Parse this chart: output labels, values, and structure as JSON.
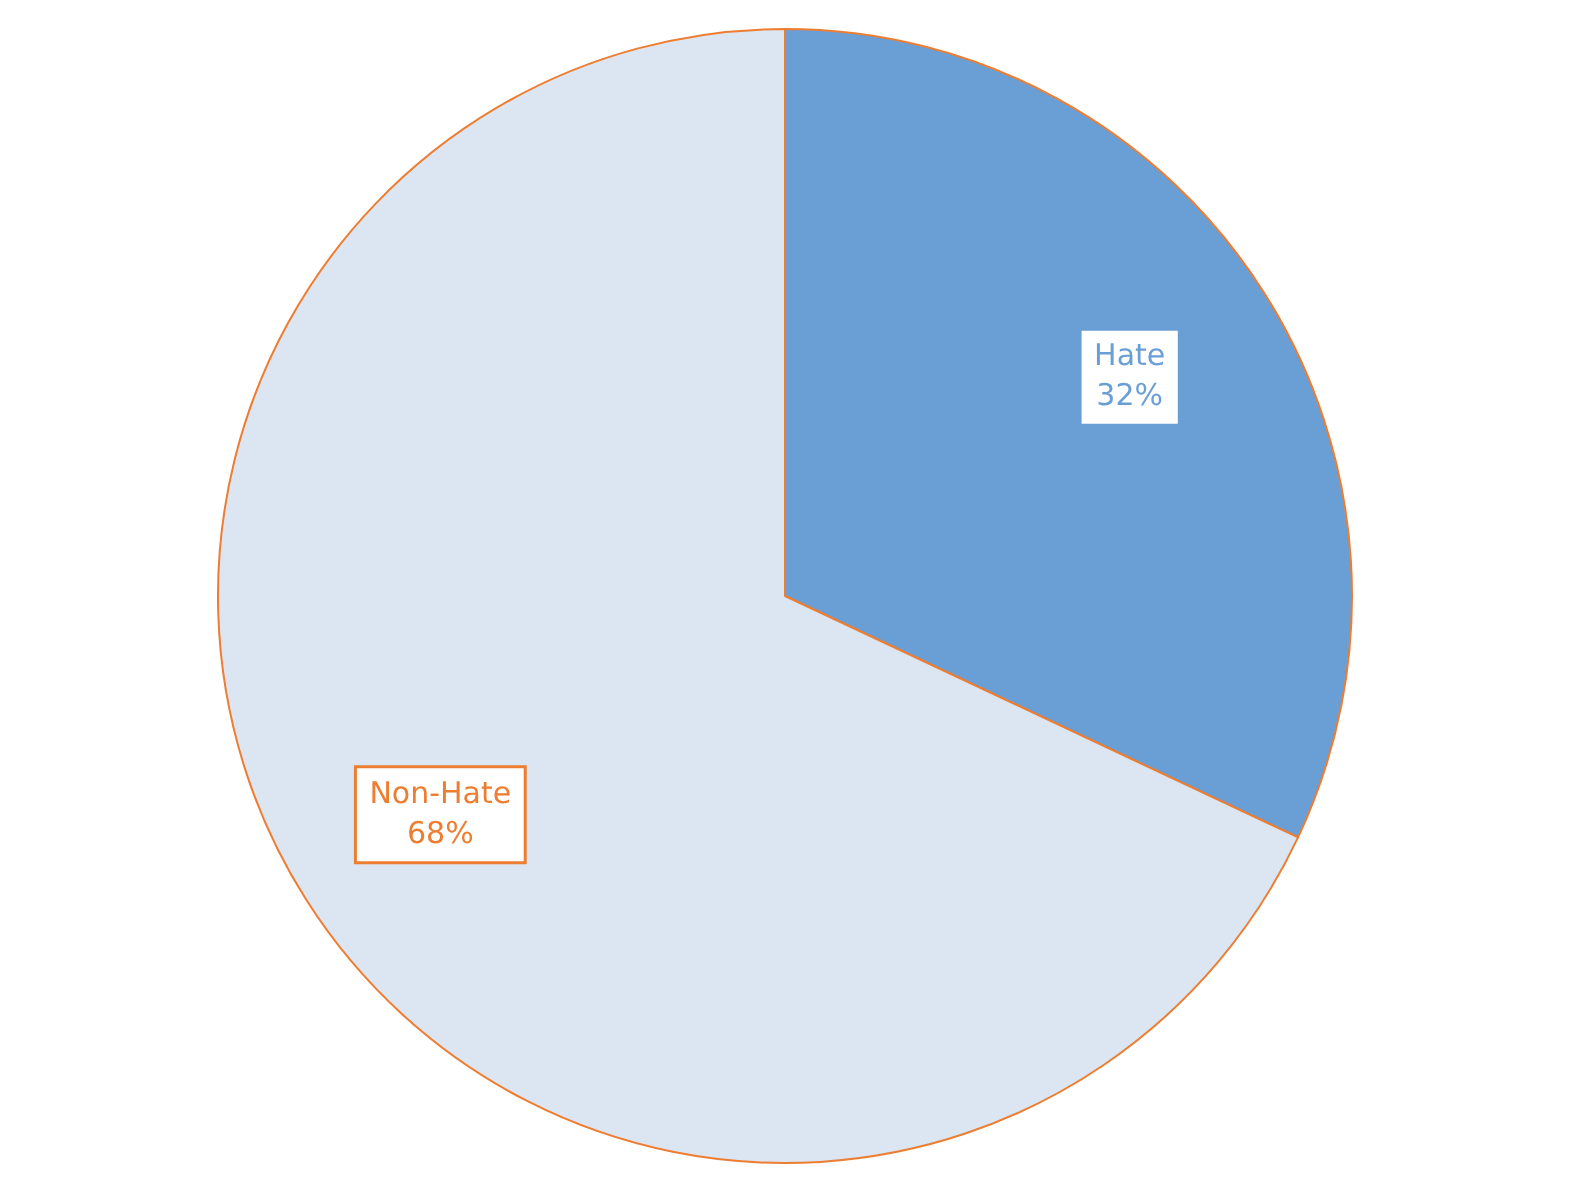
{
  "chart_data": {
    "type": "pie",
    "categories": [
      "Hate",
      "Non-Hate"
    ],
    "values": [
      32,
      68
    ],
    "colors": [
      "#6a9fd6",
      "#dce6f2"
    ],
    "value_labels": [
      "32%",
      "68%"
    ],
    "legend": false
  }
}
